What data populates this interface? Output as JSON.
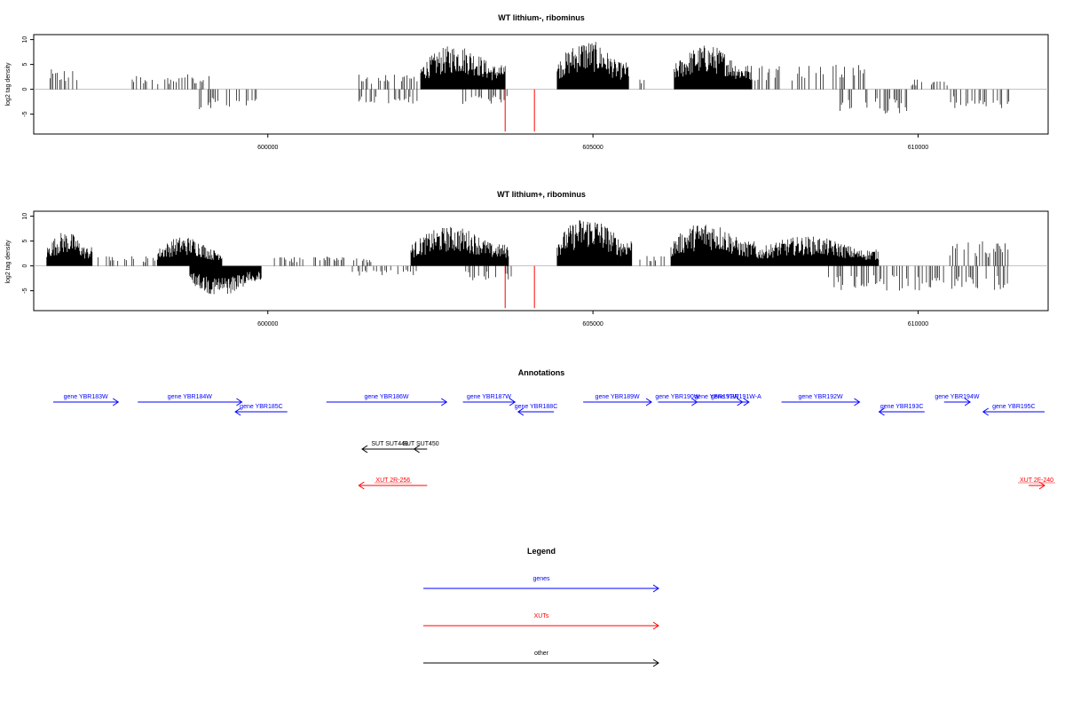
{
  "colors": {
    "genes": "#0000ff",
    "xuts": "#ff0000",
    "other": "#000000",
    "bar": "#000000",
    "highlight": "#ff0000",
    "zero": "#b0b0b0"
  },
  "chart_data": [
    {
      "type": "bar",
      "title": "WT lithium-, ribominus",
      "ylabel": "log2 tag density",
      "xlim": [
        596400,
        612000
      ],
      "ylim": [
        -9,
        11
      ],
      "xticks": [
        600000,
        605000,
        610000
      ],
      "yticks": [
        -5,
        0,
        5,
        10
      ],
      "clusters": [
        {
          "from": 596650,
          "to": 597100,
          "sign": 1,
          "max": 4
        },
        {
          "from": 597850,
          "to": 599100,
          "sign": 1,
          "max": 3
        },
        {
          "from": 598950,
          "to": 599850,
          "sign": -1,
          "max": 4
        },
        {
          "from": 601400,
          "to": 602300,
          "sign": 1,
          "max": 3
        },
        {
          "from": 601400,
          "to": 602300,
          "sign": -1,
          "max": 3
        },
        {
          "from": 602350,
          "to": 603650,
          "sign": 1,
          "max": 9
        },
        {
          "from": 603000,
          "to": 603800,
          "sign": -1,
          "max": 3
        },
        {
          "from": 604450,
          "to": 605550,
          "sign": 1,
          "max": 10
        },
        {
          "from": 605700,
          "to": 605800,
          "sign": 1,
          "max": 2
        },
        {
          "from": 606250,
          "to": 607450,
          "sign": 1,
          "max": 9
        },
        {
          "from": 607450,
          "to": 609200,
          "sign": 1,
          "max": 5
        },
        {
          "from": 608800,
          "to": 609900,
          "sign": -1,
          "max": 5
        },
        {
          "from": 609900,
          "to": 610500,
          "sign": 1,
          "max": 2
        },
        {
          "from": 610500,
          "to": 611400,
          "sign": -1,
          "max": 4
        }
      ],
      "highlights": [
        {
          "x": 603650,
          "y": -8.5
        },
        {
          "x": 604100,
          "y": -8.5
        }
      ]
    },
    {
      "type": "bar",
      "title": "WT lithium+, ribominus",
      "ylabel": "log2 tag density",
      "xlim": [
        596400,
        612000
      ],
      "ylim": [
        -9,
        11
      ],
      "xticks": [
        600000,
        605000,
        610000
      ],
      "yticks": [
        -5,
        0,
        5,
        10
      ],
      "clusters": [
        {
          "from": 596600,
          "to": 597300,
          "sign": 1,
          "max": 7
        },
        {
          "from": 597300,
          "to": 598300,
          "sign": 1,
          "max": 2
        },
        {
          "from": 598300,
          "to": 599300,
          "sign": 1,
          "max": 6
        },
        {
          "from": 598800,
          "to": 599900,
          "sign": -1,
          "max": 6
        },
        {
          "from": 600100,
          "to": 601600,
          "sign": 1,
          "max": 2
        },
        {
          "from": 601300,
          "to": 602300,
          "sign": -1,
          "max": 2
        },
        {
          "from": 602200,
          "to": 603700,
          "sign": 1,
          "max": 8
        },
        {
          "from": 603000,
          "to": 603900,
          "sign": -1,
          "max": 3
        },
        {
          "from": 604450,
          "to": 605600,
          "sign": 1,
          "max": 10
        },
        {
          "from": 605700,
          "to": 606100,
          "sign": 1,
          "max": 2
        },
        {
          "from": 606200,
          "to": 607500,
          "sign": 1,
          "max": 9
        },
        {
          "from": 607500,
          "to": 609400,
          "sign": 1,
          "max": 6
        },
        {
          "from": 608600,
          "to": 610400,
          "sign": -1,
          "max": 5
        },
        {
          "from": 610400,
          "to": 611400,
          "sign": 1,
          "max": 5
        },
        {
          "from": 610500,
          "to": 611400,
          "sign": -1,
          "max": 5
        }
      ],
      "highlights": [
        {
          "x": 603650,
          "y": -8.5
        },
        {
          "x": 604100,
          "y": -8.5
        }
      ]
    }
  ],
  "annotations": {
    "title": "Annotations",
    "xlim": [
      596400,
      612000
    ],
    "tracks": [
      {
        "kind": "genes",
        "features": [
          {
            "label": "gene YBR183W",
            "start": 596700,
            "end": 597700,
            "strand": "+",
            "row": 0
          },
          {
            "label": "gene YBR184W",
            "start": 598000,
            "end": 599600,
            "strand": "+",
            "row": 0
          },
          {
            "label": "gene YBR185C",
            "start": 599500,
            "end": 600300,
            "strand": "-",
            "row": 1
          },
          {
            "label": "gene YBR186W",
            "start": 600900,
            "end": 602750,
            "strand": "+",
            "row": 0
          },
          {
            "label": "gene YBR187W",
            "start": 603000,
            "end": 603800,
            "strand": "+",
            "row": 0
          },
          {
            "label": "gene YBR188C",
            "start": 603850,
            "end": 604400,
            "strand": "-",
            "row": 1
          },
          {
            "label": "gene YBR189W",
            "start": 604850,
            "end": 605900,
            "strand": "+",
            "row": 0
          },
          {
            "label": "gene YBR190W",
            "start": 606000,
            "end": 606600,
            "strand": "+",
            "row": 0
          },
          {
            "label": "gene YBR191W",
            "start": 606500,
            "end": 607300,
            "strand": "+",
            "row": 0
          },
          {
            "label": "gene YBR191W-A",
            "start": 607000,
            "end": 607400,
            "strand": "+",
            "row": 0
          },
          {
            "label": "gene YBR192W",
            "start": 607900,
            "end": 609100,
            "strand": "+",
            "row": 0
          },
          {
            "label": "gene YBR193C",
            "start": 609400,
            "end": 610100,
            "strand": "-",
            "row": 1
          },
          {
            "label": "gene YBR194W",
            "start": 610400,
            "end": 610800,
            "strand": "+",
            "row": 0
          },
          {
            "label": "gene YBR195C",
            "start": 611000,
            "end": 612300,
            "strand": "-",
            "row": 1
          }
        ]
      },
      {
        "kind": "other",
        "features": [
          {
            "label": "SUT SUT449",
            "start": 601450,
            "end": 602300,
            "strand": "-",
            "row": 0
          },
          {
            "label": "SUT SUT450",
            "start": 602250,
            "end": 602450,
            "strand": "-",
            "row": 0
          }
        ]
      },
      {
        "kind": "xuts",
        "features": [
          {
            "label": "XUT 2R-256",
            "start": 601400,
            "end": 602450,
            "strand": "-",
            "row": 0
          },
          {
            "label": "XUT 2F-240",
            "start": 611700,
            "end": 612600,
            "strand": "+",
            "row": 0
          }
        ]
      }
    ]
  },
  "legend": {
    "title": "Legend",
    "items": [
      {
        "label": "genes",
        "kind": "genes"
      },
      {
        "label": "XUTs",
        "kind": "xuts"
      },
      {
        "label": "other",
        "kind": "other"
      }
    ]
  }
}
